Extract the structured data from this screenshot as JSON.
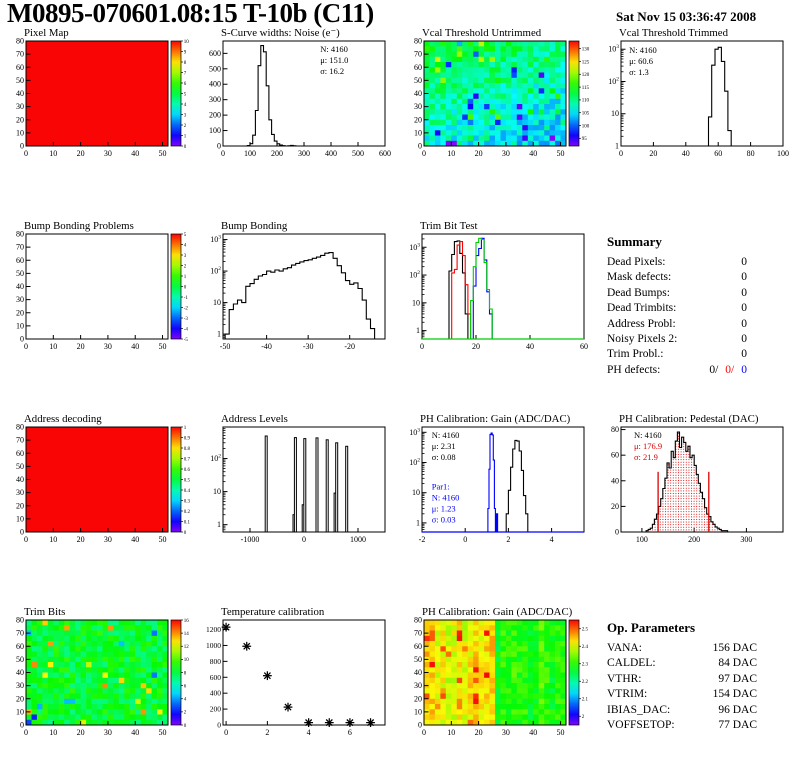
{
  "header": {
    "title": "M0895-070601.08:15 T-10b (C11)",
    "date": "Sat Nov 15 03:36:47 2008"
  },
  "summary": {
    "title": "Summary",
    "rows": [
      {
        "label": "Dead Pixels:",
        "value": "0"
      },
      {
        "label": "Mask defects:",
        "value": "0"
      },
      {
        "label": "Dead Bumps:",
        "value": "0"
      },
      {
        "label": "Dead Trimbits:",
        "value": "0"
      },
      {
        "label": "Address Probl:",
        "value": "0"
      },
      {
        "label": "Noisy Pixels 2:",
        "value": "0"
      },
      {
        "label": "Trim Probl.:",
        "value": "0"
      }
    ],
    "ph_defects": {
      "label": "PH defects:",
      "values": [
        {
          "text": "0/",
          "color": "#000000"
        },
        {
          "text": "0/",
          "color": "#ff0000"
        },
        {
          "text": "0",
          "color": "#0000ff"
        }
      ]
    }
  },
  "op_parameters": {
    "title": "Op. Parameters",
    "rows": [
      {
        "label": "VANA:",
        "value": "156 DAC"
      },
      {
        "label": "CALDEL:",
        "value": "84 DAC"
      },
      {
        "label": "VTHR:",
        "value": "97 DAC"
      },
      {
        "label": "VTRIM:",
        "value": "154 DAC"
      },
      {
        "label": "IBIAS_DAC:",
        "value": "96 DAC"
      },
      {
        "label": "VOFFSETOP:",
        "value": "77 DAC"
      }
    ]
  },
  "chart_data": [
    {
      "id": "pixel-map",
      "type": "heatmap",
      "map": "uniform",
      "title": "Pixel Map",
      "grid": [
        0,
        0
      ],
      "xlim": [
        0,
        52
      ],
      "xticks": [
        0,
        10,
        20,
        30,
        40,
        50
      ],
      "ylim": [
        0,
        80
      ],
      "yticks": [
        0,
        10,
        20,
        30,
        40,
        50,
        60,
        70,
        80
      ],
      "zmin": 0,
      "zmax": 10,
      "uniform_value": 10,
      "cbar_ticks": [
        10,
        9,
        8,
        7,
        6,
        5,
        4,
        3,
        2,
        1,
        0
      ]
    },
    {
      "id": "scurve-noise",
      "type": "hist",
      "title": "S-Curve widths: Noise (e⁻)",
      "grid": [
        0,
        1
      ],
      "xlim": [
        0,
        600
      ],
      "xticks": [
        0,
        100,
        200,
        300,
        400,
        500,
        600
      ],
      "ylim": [
        0,
        680
      ],
      "yticks": [
        0,
        100,
        200,
        300,
        400,
        500,
        600
      ],
      "series": [
        {
          "color": "#000000",
          "x0": 90,
          "bw": 10,
          "counts": [
            3,
            15,
            70,
            230,
            520,
            650,
            610,
            390,
            170,
            75,
            32,
            14,
            6,
            2,
            0,
            1,
            4,
            1
          ]
        }
      ],
      "stats": [
        {
          "x": 0.6,
          "y": 0.03,
          "color": "#000000",
          "lines": [
            "N: 4160",
            "μ: 151.0",
            "σ: 16.2"
          ]
        }
      ]
    },
    {
      "id": "vcal-untrimmed",
      "type": "heatmap",
      "map": "noise",
      "title": "Vcal Threshold Untrimmed",
      "grid": [
        0,
        2
      ],
      "seed": 11,
      "xlim": [
        0,
        52
      ],
      "xticks": [
        0,
        10,
        20,
        30,
        40,
        50
      ],
      "ylim": [
        0,
        80
      ],
      "yticks": [
        0,
        10,
        20,
        30,
        40,
        50,
        60,
        70,
        80
      ],
      "zmin": 92,
      "zmax": 133,
      "noise": {
        "base": 107,
        "amp": 7,
        "gradx": -4,
        "grady": 7,
        "specks": [
          {
            "p": 0.05,
            "dv": 8
          },
          {
            "p": 0.025,
            "dv": -12
          }
        ]
      },
      "cbar_ticks": [
        130,
        125,
        120,
        115,
        110,
        105,
        100,
        95
      ]
    },
    {
      "id": "vcal-trimmed",
      "type": "hist",
      "logy": true,
      "title": "Vcal Threshold Trimmed",
      "grid": [
        0,
        3
      ],
      "xlim": [
        0,
        100
      ],
      "xticks": [
        0,
        20,
        40,
        60,
        80,
        100
      ],
      "ylim": [
        1,
        1800
      ],
      "series": [
        {
          "color": "#000000",
          "x0": 54,
          "bw": 2,
          "counts": [
            8,
            320,
            1000,
            1150,
            420,
            50,
            3
          ]
        }
      ],
      "stats": [
        {
          "x": 0.05,
          "y": 0.04,
          "color": "#000000",
          "lines": [
            "N: 4160",
            "μ: 60.6",
            "σ:  1.3"
          ]
        }
      ]
    },
    {
      "id": "bump-problems",
      "type": "heatmap",
      "map": "empty",
      "title": "Bump Bonding Problems",
      "grid": [
        1,
        0
      ],
      "xlim": [
        0,
        52
      ],
      "xticks": [
        0,
        10,
        20,
        30,
        40,
        50
      ],
      "ylim": [
        0,
        80
      ],
      "yticks": [
        0,
        10,
        20,
        30,
        40,
        50,
        60,
        70,
        80
      ],
      "zmin": -5,
      "zmax": 5,
      "cbar_ticks": [
        5,
        4,
        3,
        2,
        1,
        0,
        -1,
        -2,
        -3,
        -4,
        -5
      ]
    },
    {
      "id": "bump-bonding",
      "type": "hist",
      "logy": true,
      "title": "Bump Bonding",
      "grid": [
        1,
        1
      ],
      "xlim": [
        -50.5,
        -11.5
      ],
      "xticks": [
        -50,
        -40,
        -30,
        -20
      ],
      "ylim": [
        0.7,
        1500
      ],
      "series": [
        {
          "color": "#000000",
          "x0": -50,
          "bw": 1,
          "counts": [
            1,
            6,
            9,
            12,
            10,
            33,
            40,
            55,
            70,
            78,
            100,
            92,
            108,
            100,
            118,
            128,
            155,
            175,
            195,
            215,
            228,
            255,
            278,
            315,
            370,
            385,
            255,
            148,
            88,
            50,
            38,
            42,
            28,
            12,
            3,
            1.5
          ]
        }
      ]
    },
    {
      "id": "trim-bit-test",
      "type": "hist",
      "logy": true,
      "title": "Trim Bit Test",
      "grid": [
        1,
        2
      ],
      "xlim": [
        0,
        60
      ],
      "xticks": [
        0,
        20,
        40,
        60
      ],
      "ylim": [
        0.5,
        3000
      ],
      "series": [
        {
          "color": "#000000",
          "x0": 10,
          "bw": 1,
          "counts": [
            140,
            550,
            1600,
            1700,
            600,
            120,
            4
          ]
        },
        {
          "color": "#ff0000",
          "x0": 11,
          "bw": 1,
          "counts": [
            120,
            160,
            1200,
            1600,
            500,
            45,
            4
          ]
        },
        {
          "color": "#0000ff",
          "x0": 19,
          "bw": 1,
          "counts": [
            40,
            500,
            900,
            2100,
            350,
            25,
            4
          ]
        },
        {
          "color": "#00cc00",
          "x0": 18,
          "bw": 1,
          "counts": [
            12,
            200,
            1500,
            2100,
            1900,
            280,
            30,
            6
          ],
          "baseline": true
        }
      ]
    },
    {
      "id": "addr-decoding",
      "type": "heatmap",
      "map": "uniform",
      "title": "Address decoding",
      "grid": [
        2,
        0
      ],
      "xlim": [
        0,
        52
      ],
      "xticks": [
        0,
        10,
        20,
        30,
        40,
        50
      ],
      "ylim": [
        0,
        80
      ],
      "yticks": [
        0,
        10,
        20,
        30,
        40,
        50,
        60,
        70,
        80
      ],
      "zmin": 0,
      "zmax": 1,
      "uniform_value": 1,
      "cbar_ticks": [
        "1",
        "0.9",
        "0.8",
        "0.7",
        "0.6",
        "0.5",
        "0.4",
        "0.3",
        "0.2",
        "0.1",
        "0"
      ]
    },
    {
      "id": "addr-levels",
      "type": "bars",
      "logy": true,
      "title": "Address Levels",
      "grid": [
        2,
        1
      ],
      "xlim": [
        -1500,
        1500
      ],
      "xticks": [
        -1000,
        0,
        1000
      ],
      "ylim": [
        0.6,
        900
      ],
      "barw": 30,
      "bars": [
        [
          -700,
          480
        ],
        [
          -185,
          2
        ],
        [
          -160,
          430
        ],
        [
          -15,
          4
        ],
        [
          15,
          400
        ],
        [
          240,
          420
        ],
        [
          430,
          370
        ],
        [
          575,
          9
        ],
        [
          605,
          300
        ],
        [
          790,
          235
        ]
      ]
    },
    {
      "id": "ph-gain-hist",
      "type": "hist",
      "logy": true,
      "title": "PH Calibration: Gain (ADC/DAC)",
      "grid": [
        2,
        2
      ],
      "xlim": [
        -2,
        5.5
      ],
      "xticks": [
        -2,
        0,
        2,
        4
      ],
      "ylim": [
        0.5,
        1500
      ],
      "series": [
        {
          "color": "#000000",
          "x0": 1.9,
          "bw": 0.1,
          "counts": [
            2,
            12,
            70,
            280,
            540,
            510,
            240,
            55,
            8,
            2
          ]
        },
        {
          "color": "#0000ff",
          "x0": 1.05,
          "bw": 0.05,
          "counts": [
            3,
            60,
            850,
            950,
            820,
            120,
            3,
            0,
            2
          ],
          "baseline": true
        }
      ],
      "stats": [
        {
          "x": 0.06,
          "y": 0.03,
          "color": "#000000",
          "lines": [
            "N: 4160",
            "μ: 2.31",
            "σ: 0.08"
          ]
        },
        {
          "x": 0.06,
          "y": 0.52,
          "color": "#0000ff",
          "lines": [
            "Par1:",
            "N: 4160",
            "μ: 1.23",
            "σ: 0.03"
          ]
        }
      ]
    },
    {
      "id": "ph-pedestal",
      "type": "hist",
      "title": "PH Calibration: Pedestal (DAC)",
      "grid": [
        2,
        3
      ],
      "xlim": [
        60,
        370
      ],
      "xticks": [
        100,
        200,
        300
      ],
      "ylim": [
        0,
        82
      ],
      "yticks": [
        0,
        20,
        40,
        60,
        80
      ],
      "series": [
        {
          "color": "#000000",
          "x0": 108,
          "bw": 4,
          "fill": "dots",
          "counts": [
            1,
            2,
            3,
            6,
            10,
            14,
            20,
            26,
            34,
            42,
            54,
            50,
            63,
            58,
            71,
            78,
            66,
            74,
            70,
            63,
            67,
            58,
            60,
            52,
            45,
            38,
            31,
            26,
            19,
            14,
            12,
            8,
            6,
            4,
            3,
            2,
            1,
            1,
            1
          ]
        }
      ],
      "vlines": [
        {
          "x": 131,
          "y": 47,
          "color": "#dd0000"
        },
        {
          "x": 228,
          "y": 47,
          "color": "#dd0000"
        }
      ],
      "stats": [
        {
          "x": 0.08,
          "y": 0.03,
          "lines": [
            {
              "t": "N: 4160",
              "c": "#000000"
            },
            {
              "t": "μ: 176.9",
              "c": "#dd0000"
            },
            {
              "t": "σ: 21.9",
              "c": "#dd0000"
            }
          ]
        }
      ]
    },
    {
      "id": "trim-bits",
      "type": "heatmap",
      "map": "noise",
      "title": "Trim Bits",
      "grid": [
        3,
        0
      ],
      "seed": 23,
      "xlim": [
        0,
        52
      ],
      "xticks": [
        0,
        10,
        20,
        30,
        40,
        50
      ],
      "ylim": [
        0,
        80
      ],
      "yticks": [
        0,
        10,
        20,
        30,
        40,
        50,
        60,
        70,
        80
      ],
      "zmin": 0,
      "zmax": 16,
      "noise": {
        "base": 8.3,
        "amp": 2.6,
        "specks": [
          {
            "p": 0.03,
            "dv": 4.5
          },
          {
            "p": 0.012,
            "dv": -5
          }
        ]
      },
      "cbar_ticks": [
        16,
        14,
        12,
        10,
        8,
        6,
        4,
        2,
        0
      ]
    },
    {
      "id": "temp-calib",
      "type": "scatter",
      "title": "Temperature calibration",
      "grid": [
        3,
        1
      ],
      "xlim": [
        -0.15,
        7.7
      ],
      "xticks": [
        0,
        2,
        4,
        6
      ],
      "ylim": [
        0,
        1320
      ],
      "yticks": [
        0,
        200,
        400,
        600,
        800,
        1000,
        1200
      ],
      "points": [
        [
          0,
          1230
        ],
        [
          1,
          990
        ],
        [
          2,
          620
        ],
        [
          3,
          225
        ],
        [
          4,
          30
        ],
        [
          5,
          30
        ],
        [
          6,
          30
        ],
        [
          7,
          30
        ]
      ]
    },
    {
      "id": "ph-gain-map",
      "type": "heatmap",
      "map": "noise",
      "title": "PH Calibration: Gain (ADC/DAC)",
      "grid": [
        3,
        2
      ],
      "seed": 41,
      "xlim": [
        0,
        52
      ],
      "xticks": [
        0,
        10,
        20,
        30,
        40,
        50
      ],
      "ylim": [
        0,
        80
      ],
      "yticks": [
        0,
        10,
        20,
        30,
        40,
        50,
        60,
        70,
        80
      ],
      "zmin": 1.95,
      "zmax": 2.55,
      "noise": {
        "base": 2.42,
        "amp": 0.07,
        "colamp": 0.06,
        "stepx": [
          0.48,
          -0.13
        ],
        "specks": [
          {
            "p": 0.1,
            "dv": 0.09,
            "xmax": 0.5
          }
        ]
      },
      "cbar_ticks": [
        "2.5",
        "2.4",
        "2.3",
        "2.2",
        "2.1",
        "2"
      ]
    }
  ]
}
